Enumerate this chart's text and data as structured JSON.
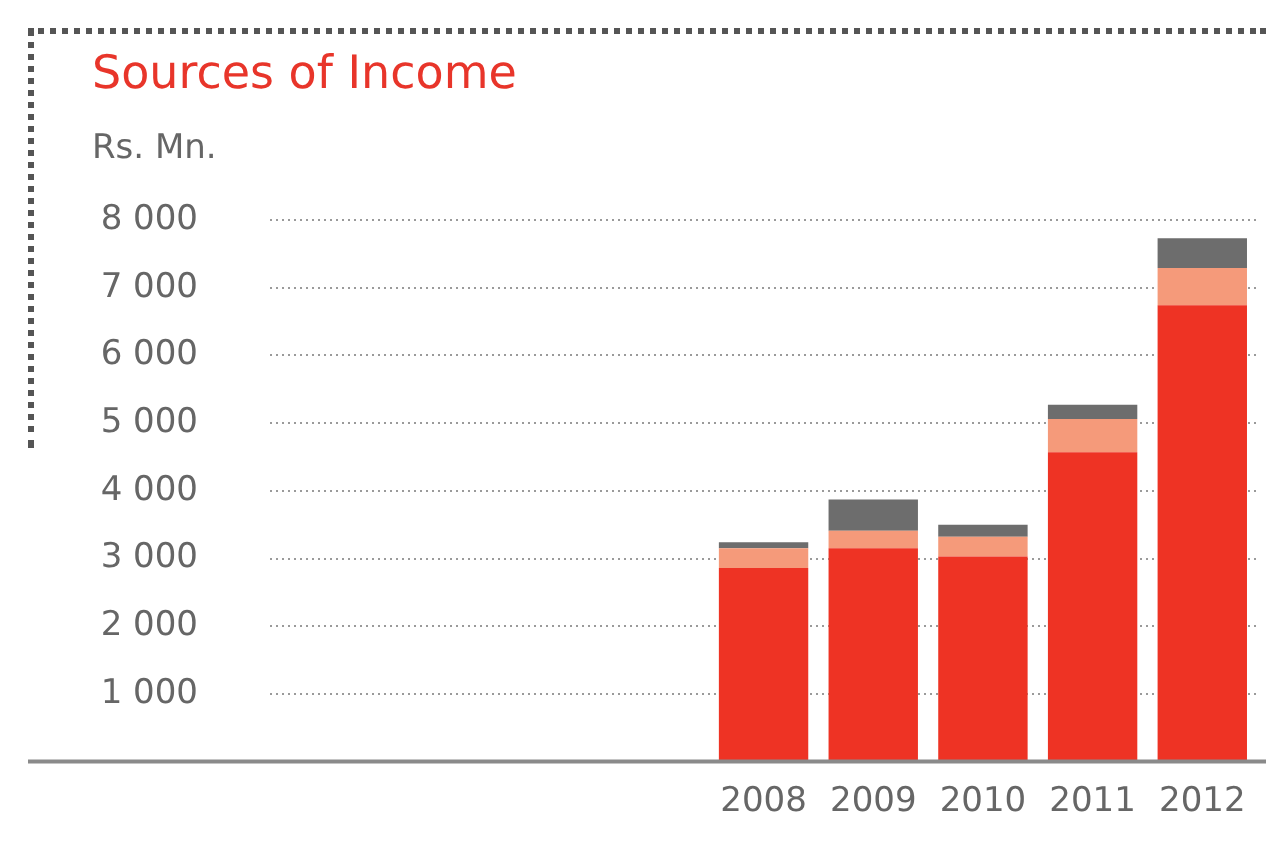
{
  "chart_data": {
    "type": "bar",
    "title": "Sources of Income",
    "ylabel": "Rs. Mn.",
    "stacked": true,
    "categories": [
      null,
      null,
      null,
      null,
      "2008",
      "2009",
      "2010",
      "2011",
      "2012"
    ],
    "series": [
      {
        "color": "#ee3324",
        "values": [
          null,
          null,
          null,
          null,
          2860,
          3150,
          3030,
          4570,
          6740
        ]
      },
      {
        "color": "#f59a7a",
        "values": [
          null,
          null,
          null,
          null,
          290,
          260,
          290,
          490,
          550
        ]
      },
      {
        "color": "#6d6d6d",
        "values": [
          null,
          null,
          null,
          null,
          90,
          460,
          180,
          210,
          440
        ]
      }
    ],
    "ylim": [
      0,
      8000
    ],
    "yticks": [
      {
        "value": 1000,
        "label": "1 000"
      },
      {
        "value": 2000,
        "label": "2 000"
      },
      {
        "value": 3000,
        "label": "3 000"
      },
      {
        "value": 4000,
        "label": "4 000"
      },
      {
        "value": 5000,
        "label": "5 000"
      },
      {
        "value": 6000,
        "label": "6 000"
      },
      {
        "value": 7000,
        "label": "7 000"
      },
      {
        "value": 8000,
        "label": "8 000"
      }
    ],
    "grid": "y",
    "legend": false
  }
}
